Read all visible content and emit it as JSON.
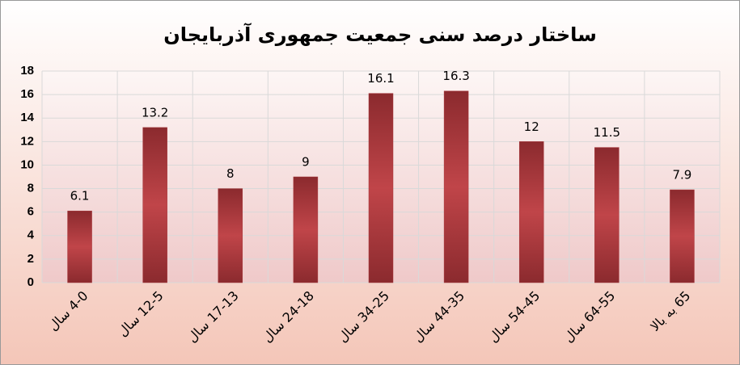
{
  "chart_data": {
    "type": "bar",
    "title": "ساختار درصد سنی جمعیت جمهوری آذربایجان",
    "categories": [
      "4-0 سال",
      "12-5 سال",
      "17-13 سال",
      "24-18 سال",
      "34-25 سال",
      "44-35 سال",
      "54-45 سال",
      "64-55 سال",
      "65 به بالا"
    ],
    "values": [
      6.1,
      13.2,
      8,
      9,
      16.1,
      16.3,
      12,
      11.5,
      7.9
    ],
    "color": "#a8383c",
    "ylim": [
      0,
      18
    ],
    "yticks": [
      0,
      2,
      4,
      6,
      8,
      10,
      12,
      14,
      16,
      18
    ],
    "grid": true
  }
}
